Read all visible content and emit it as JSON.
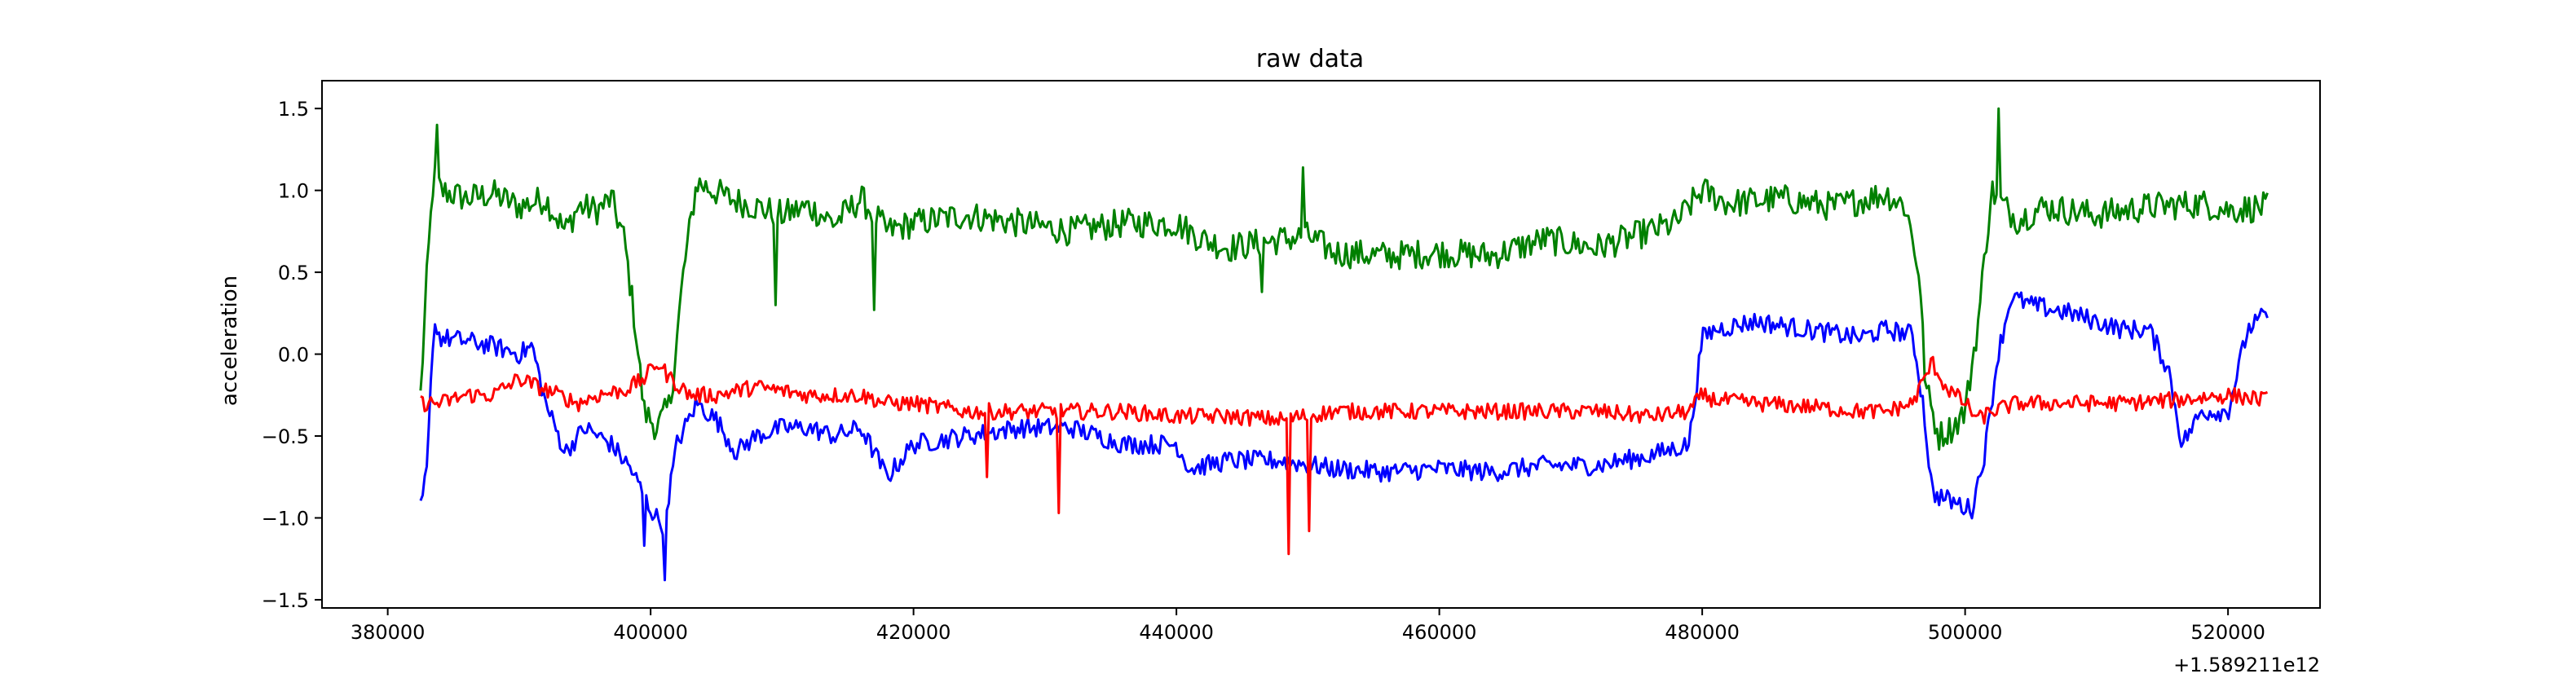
{
  "chart_data": {
    "type": "line",
    "title": "raw data",
    "xlabel": "",
    "ylabel": "acceleration",
    "x_offset_label": "+1.589211e12",
    "xlim": [
      375000,
      527000
    ],
    "ylim": [
      -1.55,
      1.67
    ],
    "x_ticks": [
      380000,
      400000,
      420000,
      440000,
      460000,
      480000,
      500000,
      520000
    ],
    "x_tick_labels": [
      "380000",
      "400000",
      "420000",
      "440000",
      "460000",
      "480000",
      "500000",
      "520000"
    ],
    "y_ticks": [
      -1.5,
      -1.0,
      -0.5,
      0.0,
      0.5,
      1.0,
      1.5
    ],
    "y_tick_labels": [
      "−1.5",
      "−1.0",
      "−0.5",
      "0.0",
      "0.5",
      "1.0",
      "1.5"
    ],
    "grid": false,
    "legend": "none",
    "series": [
      {
        "color": "#008000",
        "x": [
          382500,
          383000,
          383500,
          384000,
          386000,
          388000,
          390000,
          392000,
          393500,
          394500,
          396000,
          397000,
          398000,
          398800,
          399500,
          400500,
          401500,
          402500,
          403500,
          406000,
          408000,
          410000,
          412000,
          414000,
          416000,
          418000,
          420000,
          424000,
          428000,
          432000,
          436000,
          440000,
          442000,
          444000,
          448000,
          450000,
          452000,
          456000,
          460000,
          464000,
          468000,
          472000,
          476000,
          478000,
          480000,
          482000,
          486000,
          490000,
          494000,
          495500,
          496500,
          497000,
          498000,
          499000,
          500000,
          501000,
          502000,
          503000,
          504000,
          506000,
          510000,
          514000,
          518000,
          520000,
          523000
        ],
        "y": [
          -0.25,
          0.5,
          1.1,
          1.0,
          0.95,
          0.98,
          0.9,
          0.95,
          0.75,
          0.9,
          0.88,
          0.95,
          0.7,
          0.2,
          -0.35,
          -0.45,
          -0.3,
          0.5,
          1.05,
          0.95,
          0.9,
          0.85,
          0.9,
          0.8,
          0.95,
          0.75,
          0.8,
          0.85,
          0.8,
          0.75,
          0.8,
          0.8,
          0.7,
          0.65,
          0.7,
          0.72,
          0.62,
          0.6,
          0.62,
          0.6,
          0.7,
          0.65,
          0.75,
          0.8,
          1.0,
          0.92,
          0.95,
          0.9,
          0.98,
          0.9,
          0.5,
          -0.2,
          -0.5,
          -0.45,
          -0.35,
          0.2,
          1.0,
          0.9,
          0.82,
          0.9,
          0.85,
          0.9,
          0.92,
          0.88,
          0.9
        ]
      },
      {
        "color": "#0000ff",
        "x": [
          382500,
          383000,
          383500,
          384000,
          386000,
          388000,
          390000,
          391000,
          392000,
          393500,
          395000,
          397000,
          398500,
          400000,
          401000,
          402000,
          403500,
          405000,
          406500,
          408000,
          410000,
          412000,
          414000,
          416000,
          418000,
          420000,
          424000,
          428000,
          432000,
          436000,
          440000,
          441000,
          444000,
          448000,
          452000,
          456000,
          460000,
          464000,
          468000,
          472000,
          476000,
          479000,
          480000,
          481000,
          484000,
          488000,
          492000,
          494000,
          496000,
          496800,
          497500,
          499000,
          500500,
          501500,
          502500,
          503500,
          505000,
          508000,
          512000,
          514000,
          515500,
          516500,
          518000,
          520000,
          521500,
          523000
        ],
        "y": [
          -0.95,
          -0.7,
          0.2,
          0.1,
          0.08,
          0.05,
          0.0,
          0.05,
          -0.3,
          -0.6,
          -0.45,
          -0.55,
          -0.7,
          -0.95,
          -1.05,
          -0.55,
          -0.3,
          -0.4,
          -0.6,
          -0.5,
          -0.45,
          -0.45,
          -0.5,
          -0.45,
          -0.75,
          -0.55,
          -0.5,
          -0.45,
          -0.45,
          -0.55,
          -0.55,
          -0.7,
          -0.65,
          -0.65,
          -0.7,
          -0.72,
          -0.7,
          -0.72,
          -0.68,
          -0.68,
          -0.62,
          -0.55,
          0.1,
          0.15,
          0.2,
          0.15,
          0.1,
          0.15,
          0.12,
          -0.3,
          -0.85,
          -0.9,
          -0.95,
          -0.6,
          0.0,
          0.35,
          0.3,
          0.25,
          0.15,
          0.15,
          -0.1,
          -0.55,
          -0.35,
          -0.35,
          0.15,
          0.25
        ]
      },
      {
        "color": "#ff0000",
        "x": [
          382500,
          384000,
          386000,
          388000,
          390000,
          391500,
          393000,
          394500,
          396000,
          398000,
          399500,
          400500,
          401500,
          403000,
          405000,
          408000,
          412000,
          416000,
          418000,
          420000,
          424000,
          428000,
          432000,
          436000,
          440000,
          444000,
          448000,
          452000,
          456000,
          460000,
          464000,
          468000,
          472000,
          476000,
          479000,
          480000,
          481000,
          484000,
          488000,
          492000,
          494000,
          496000,
          497500,
          498500,
          500000,
          501000,
          502000,
          504000,
          508000,
          512000,
          516000,
          520000,
          523000
        ],
        "y": [
          -0.3,
          -0.3,
          -0.25,
          -0.25,
          -0.15,
          -0.2,
          -0.25,
          -0.3,
          -0.25,
          -0.22,
          -0.15,
          -0.05,
          -0.15,
          -0.25,
          -0.25,
          -0.2,
          -0.25,
          -0.25,
          -0.3,
          -0.3,
          -0.35,
          -0.35,
          -0.35,
          -0.35,
          -0.38,
          -0.38,
          -0.4,
          -0.35,
          -0.35,
          -0.35,
          -0.35,
          -0.35,
          -0.35,
          -0.38,
          -0.35,
          -0.25,
          -0.28,
          -0.3,
          -0.32,
          -0.35,
          -0.35,
          -0.3,
          -0.05,
          -0.2,
          -0.3,
          -0.4,
          -0.35,
          -0.3,
          -0.3,
          -0.3,
          -0.28,
          -0.25,
          -0.28
        ]
      }
    ],
    "spikes": [
      {
        "series": 2,
        "x": 448500,
        "y": -1.22
      },
      {
        "series": 2,
        "x": 450000,
        "y": -1.08
      },
      {
        "series": 2,
        "x": 431000,
        "y": -0.97
      },
      {
        "series": 2,
        "x": 425500,
        "y": -0.75
      },
      {
        "series": 1,
        "x": 401000,
        "y": -1.38
      },
      {
        "series": 1,
        "x": 399500,
        "y": -1.17
      },
      {
        "series": 0,
        "x": 383700,
        "y": 1.4
      },
      {
        "series": 0,
        "x": 502500,
        "y": 1.5
      },
      {
        "series": 0,
        "x": 449500,
        "y": 1.14
      },
      {
        "series": 0,
        "x": 417000,
        "y": 0.27
      },
      {
        "series": 0,
        "x": 409500,
        "y": 0.3
      },
      {
        "series": 0,
        "x": 446500,
        "y": 0.38
      }
    ]
  }
}
